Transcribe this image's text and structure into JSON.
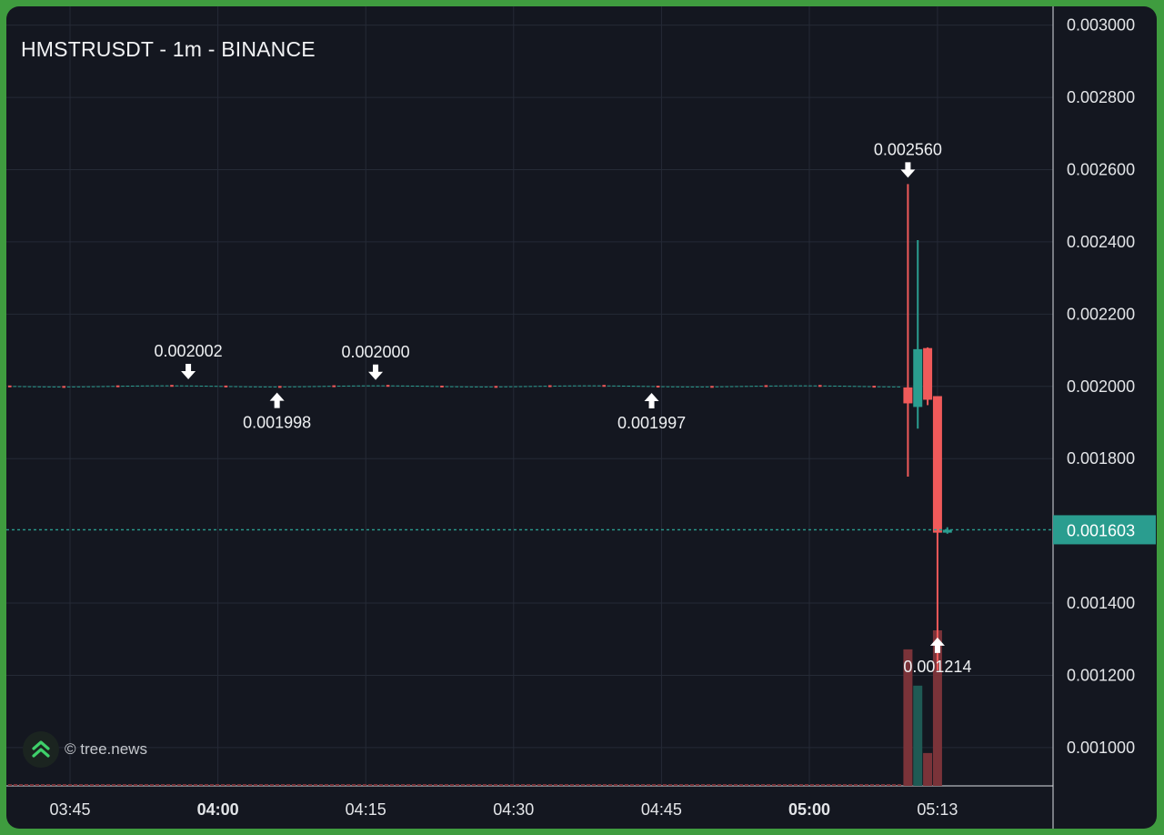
{
  "title": "HMSTRUSDT - 1m - BINANCE",
  "watermark": {
    "text": "© tree.news",
    "icon": "tree-news-logo-icon"
  },
  "colors": {
    "background": "#141720",
    "frame": "#3f9c3f",
    "grid": "#252a36",
    "up": "#2a9d8f",
    "down": "#f05a5a",
    "volume_up": "#1f5a54",
    "volume_down": "#7a3339",
    "text": "#dfe2e6"
  },
  "chart_data": {
    "type": "candlestick",
    "title": "HMSTRUSDT - 1m - BINANCE",
    "interval": "1m",
    "x_ticks": [
      {
        "label": "03:45",
        "bold": false
      },
      {
        "label": "04:00",
        "bold": true
      },
      {
        "label": "04:15",
        "bold": false
      },
      {
        "label": "04:30",
        "bold": false
      },
      {
        "label": "04:45",
        "bold": false
      },
      {
        "label": "05:00",
        "bold": true
      },
      {
        "label": "05:13",
        "bold": false
      }
    ],
    "y_ticks": [
      "0.003000",
      "0.002800",
      "0.002600",
      "0.002400",
      "0.002200",
      "0.002000",
      "0.001800",
      "0.001400",
      "0.001200",
      "0.001000"
    ],
    "ylim": [
      0.000894,
      0.003052
    ],
    "grid": true,
    "current_price": {
      "label": "0.001603",
      "value": 0.001603
    },
    "annotations": [
      {
        "label": "0.002002",
        "value": 0.002002,
        "time": "03:57",
        "direction": "down",
        "position": "above"
      },
      {
        "label": "0.001998",
        "value": 0.001998,
        "time": "04:06",
        "direction": "up",
        "position": "below"
      },
      {
        "label": "0.002000",
        "value": 0.002,
        "time": "04:16",
        "direction": "down",
        "position": "above"
      },
      {
        "label": "0.001997",
        "value": 0.001997,
        "time": "04:44",
        "direction": "up",
        "position": "below"
      },
      {
        "label": "0.002560",
        "value": 0.00256,
        "time": "05:10",
        "direction": "down",
        "position": "above"
      },
      {
        "label": "0.001214",
        "value": 0.001214,
        "time": "05:13",
        "direction": "up",
        "position": "below"
      }
    ],
    "candles": [
      {
        "time": "05:10",
        "open": 0.001997,
        "high": 0.00256,
        "low": 0.00175,
        "close": 0.001953
      },
      {
        "time": "05:11",
        "open": 0.001943,
        "high": 0.002405,
        "low": 0.001883,
        "close": 0.002103
      },
      {
        "time": "05:12",
        "open": 0.002106,
        "high": 0.002108,
        "low": 0.001948,
        "close": 0.001963
      },
      {
        "time": "05:13",
        "open": 0.001973,
        "high": 0.001973,
        "low": 0.001214,
        "close": 0.001595
      },
      {
        "time": "05:14",
        "open": 0.001595,
        "high": 0.00161,
        "low": 0.001592,
        "close": 0.001603
      }
    ],
    "volume": [
      {
        "time": "05:10",
        "value": 0.79,
        "direction": "down"
      },
      {
        "time": "05:11",
        "value": 0.58,
        "direction": "up"
      },
      {
        "time": "05:12",
        "value": 0.19,
        "direction": "down"
      },
      {
        "time": "05:13",
        "value": 0.9,
        "direction": "down"
      }
    ]
  }
}
